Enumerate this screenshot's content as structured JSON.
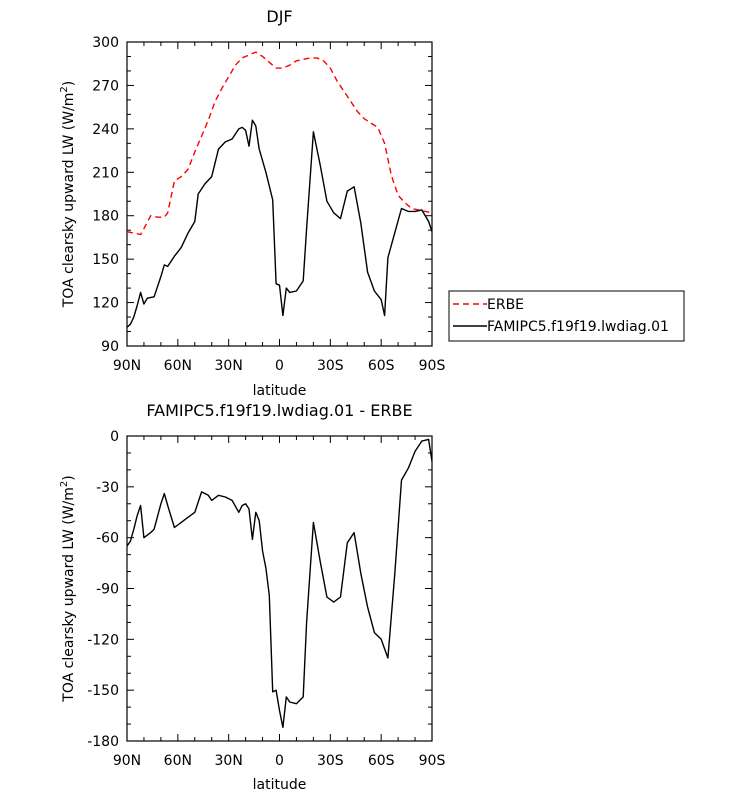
{
  "chart_data": [
    {
      "type": "line",
      "title": "DJF",
      "xlabel": "latitude",
      "ylabel": "TOA clearsky upward LW (W/m",
      "ylabel_sup": "2",
      "ylabel_close": ")",
      "xlim": [
        90,
        -90
      ],
      "ylim": [
        90,
        300
      ],
      "x_ticks": [
        90,
        60,
        30,
        0,
        -30,
        -60,
        -90
      ],
      "x_tick_labels": [
        "90N",
        "60N",
        "30N",
        "0",
        "30S",
        "60S",
        "90S"
      ],
      "y_ticks": [
        90,
        120,
        150,
        180,
        210,
        240,
        270,
        300
      ],
      "y_tick_labels": [
        "90",
        "120",
        "150",
        "180",
        "210",
        "240",
        "270",
        "300"
      ],
      "legend_position": "right",
      "series": [
        {
          "name": "ERBE",
          "color": "#ff0000",
          "dash": true,
          "x": [
            90,
            86,
            82,
            80,
            76,
            72,
            68,
            66,
            62,
            58,
            54,
            50,
            46,
            42,
            38,
            34,
            30,
            26,
            22,
            18,
            14,
            10,
            6,
            2,
            -2,
            -6,
            -10,
            -14,
            -18,
            -22,
            -26,
            -30,
            -34,
            -38,
            -42,
            -46,
            -50,
            -54,
            -58,
            -62,
            -66,
            -70,
            -74,
            -78,
            -82,
            -86,
            -90
          ],
          "y": [
            169,
            168,
            167,
            171,
            180,
            179,
            179,
            182,
            204,
            207,
            212,
            224,
            235,
            246,
            259,
            268,
            276,
            284,
            289,
            291,
            293,
            290,
            286,
            282,
            282,
            284,
            287,
            288,
            289,
            289,
            287,
            282,
            273,
            266,
            259,
            252,
            247,
            244,
            241,
            230,
            208,
            194,
            189,
            185,
            184,
            183,
            182
          ]
        },
        {
          "name": "FAMIPC5.f19f19.lwdiag.01",
          "color": "#000000",
          "dash": false,
          "x": [
            90,
            88,
            86,
            84,
            82,
            80,
            78,
            74,
            70,
            68,
            66,
            62,
            58,
            54,
            50,
            48,
            44,
            40,
            36,
            32,
            28,
            24,
            22,
            20,
            18,
            16,
            14,
            12,
            8,
            4,
            2,
            0,
            -2,
            -4,
            -6,
            -10,
            -14,
            -16,
            -20,
            -24,
            -28,
            -32,
            -36,
            -40,
            -44,
            -48,
            -52,
            -56,
            -60,
            -62,
            -64,
            -68,
            -72,
            -76,
            -80,
            -84,
            -88,
            -90
          ],
          "y": [
            103,
            105,
            110,
            118,
            127,
            119,
            123,
            124,
            138,
            146,
            145,
            152,
            158,
            168,
            176,
            195,
            202,
            207,
            226,
            231,
            233,
            240,
            241,
            239,
            228,
            246,
            242,
            226,
            210,
            191,
            133,
            132,
            111,
            130,
            127,
            128,
            135,
            171,
            238,
            215,
            190,
            182,
            178,
            197,
            200,
            175,
            141,
            128,
            122,
            111,
            151,
            168,
            185,
            183,
            183,
            184,
            176,
            169
          ]
        }
      ]
    },
    {
      "type": "line",
      "title": "FAMIPC5.f19f19.lwdiag.01 - ERBE",
      "xlabel": "latitude",
      "ylabel": "TOA clearsky upward LW (W/m",
      "ylabel_sup": "2",
      "ylabel_close": ")",
      "xlim": [
        90,
        -90
      ],
      "ylim": [
        -180,
        0
      ],
      "x_ticks": [
        90,
        60,
        30,
        0,
        -30,
        -60,
        -90
      ],
      "x_tick_labels": [
        "90N",
        "60N",
        "30N",
        "0",
        "30S",
        "60S",
        "90S"
      ],
      "y_ticks": [
        -180,
        -150,
        -120,
        -90,
        -60,
        -30,
        0
      ],
      "y_tick_labels": [
        "-180",
        "-150",
        "-120",
        "-90",
        "-60",
        "-30",
        "0"
      ],
      "series": [
        {
          "color": "#000000",
          "dash": false,
          "x": [
            90,
            88,
            86,
            84,
            82,
            80,
            76,
            74,
            70,
            68,
            66,
            62,
            58,
            54,
            50,
            46,
            42,
            40,
            36,
            32,
            28,
            24,
            22,
            20,
            18,
            16,
            14,
            12,
            10,
            8,
            6,
            4,
            2,
            0,
            -2,
            -4,
            -6,
            -10,
            -14,
            -16,
            -20,
            -24,
            -28,
            -32,
            -36,
            -40,
            -44,
            -48,
            -52,
            -56,
            -60,
            -64,
            -68,
            -72,
            -76,
            -80,
            -84,
            -88,
            -90
          ],
          "y": [
            -65,
            -62,
            -55,
            -47,
            -41,
            -60,
            -57,
            -55,
            -40,
            -34,
            -41,
            -54,
            -51,
            -48,
            -45,
            -33,
            -35,
            -38,
            -35,
            -36,
            -38,
            -45,
            -41,
            -40,
            -43,
            -61,
            -45,
            -50,
            -68,
            -78,
            -94,
            -151,
            -150,
            -162,
            -172,
            -154,
            -157,
            -158,
            -154,
            -110,
            -51,
            -74,
            -95,
            -98,
            -95,
            -63,
            -57,
            -81,
            -101,
            -116,
            -120,
            -131,
            -82,
            -26,
            -19,
            -9,
            -3,
            -2,
            -15
          ]
        }
      ]
    }
  ]
}
